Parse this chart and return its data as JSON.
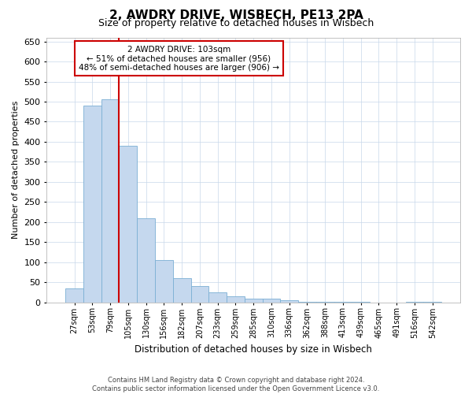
{
  "title": "2, AWDRY DRIVE, WISBECH, PE13 2PA",
  "subtitle": "Size of property relative to detached houses in Wisbech",
  "xlabel": "Distribution of detached houses by size in Wisbech",
  "ylabel": "Number of detached properties",
  "footer1": "Contains HM Land Registry data © Crown copyright and database right 2024.",
  "footer2": "Contains public sector information licensed under the Open Government Licence v3.0.",
  "bin_labels": [
    "27sqm",
    "53sqm",
    "79sqm",
    "105sqm",
    "130sqm",
    "156sqm",
    "182sqm",
    "207sqm",
    "233sqm",
    "259sqm",
    "285sqm",
    "310sqm",
    "336sqm",
    "362sqm",
    "388sqm",
    "413sqm",
    "439sqm",
    "465sqm",
    "491sqm",
    "516sqm",
    "542sqm"
  ],
  "bar_values": [
    35,
    490,
    505,
    390,
    210,
    105,
    60,
    40,
    25,
    15,
    10,
    10,
    5,
    2,
    1,
    1,
    1,
    0,
    0,
    1,
    1
  ],
  "bar_color": "#c5d8ee",
  "bar_edge_color": "#7bafd4",
  "red_line_index": 3,
  "ylim": [
    0,
    660
  ],
  "yticks": [
    0,
    50,
    100,
    150,
    200,
    250,
    300,
    350,
    400,
    450,
    500,
    550,
    600,
    650
  ],
  "annotation_title": "2 AWDRY DRIVE: 103sqm",
  "annotation_line1": "← 51% of detached houses are smaller (956)",
  "annotation_line2": "48% of semi-detached houses are larger (906) →",
  "annotation_box_color": "#ffffff",
  "annotation_box_edge_color": "#cc0000",
  "red_line_color": "#cc0000",
  "background_color": "#ffffff",
  "grid_color": "#c8d8ea",
  "title_fontsize": 11,
  "subtitle_fontsize": 9
}
